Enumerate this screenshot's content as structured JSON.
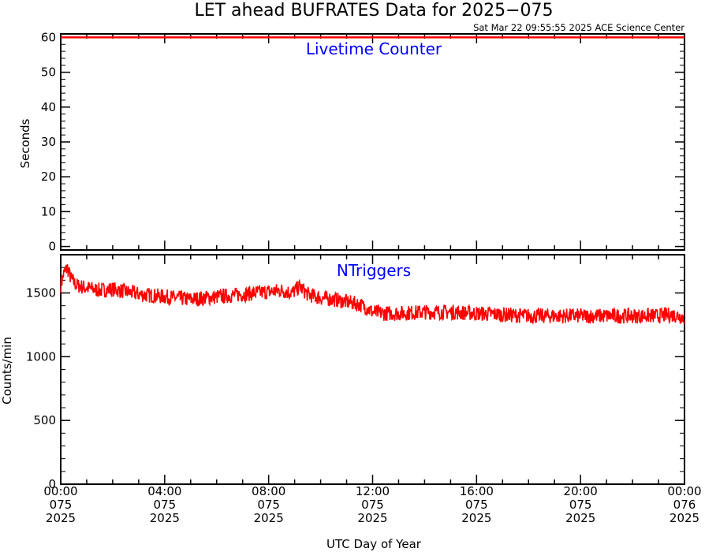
{
  "title": "LET ahead BUFRATES Data for 2025−075",
  "timestamp": "Sat Mar 22 09:55:55 2025 ACE Science Center",
  "colors": {
    "series": "#ff0000",
    "panel_title": "#0000ff",
    "axes": "#000000",
    "background": "#ffffff"
  },
  "chart_data": [
    {
      "type": "line",
      "panel_title": "Livetime Counter",
      "ylabel": "Seconds",
      "ylim": [
        -1,
        61
      ],
      "yticks": [
        0,
        10,
        20,
        30,
        40,
        50,
        60
      ],
      "xlim": [
        0,
        24
      ],
      "grid": false,
      "series": [
        {
          "x": [
            0,
            24
          ],
          "values": [
            60,
            60
          ]
        }
      ]
    },
    {
      "type": "line",
      "panel_title": "NTriggers",
      "ylabel": "Counts/min",
      "xlabel": "UTC Day of Year",
      "ylim": [
        0,
        1800
      ],
      "yticks": [
        0,
        500,
        1000,
        1500
      ],
      "xlim": [
        0,
        24
      ],
      "grid": false,
      "x_tick_labels": [
        [
          "00:00",
          "075",
          "2025"
        ],
        [
          "04:00",
          "075",
          "2025"
        ],
        [
          "08:00",
          "075",
          "2025"
        ],
        [
          "12:00",
          "075",
          "2025"
        ],
        [
          "16:00",
          "075",
          "2025"
        ],
        [
          "20:00",
          "075",
          "2025"
        ],
        [
          "00:00",
          "076",
          "2025"
        ]
      ],
      "series": [
        {
          "x": [
            0,
            0.1,
            0.25,
            0.4,
            0.6,
            1,
            1.5,
            2,
            2.5,
            3,
            3.5,
            4,
            4.5,
            5,
            5.5,
            6,
            6.5,
            7,
            7.5,
            8,
            8.5,
            8.9,
            9.2,
            9.5,
            10,
            10.5,
            11,
            11.5,
            11.8,
            12,
            12.5,
            13,
            14,
            15,
            16,
            17,
            18,
            19,
            20,
            21,
            22,
            23,
            23.5,
            24
          ],
          "values": [
            1560,
            1640,
            1700,
            1610,
            1560,
            1540,
            1520,
            1530,
            1510,
            1490,
            1480,
            1470,
            1460,
            1450,
            1460,
            1470,
            1480,
            1490,
            1500,
            1510,
            1520,
            1500,
            1550,
            1490,
            1460,
            1450,
            1430,
            1410,
            1380,
            1350,
            1340,
            1340,
            1350,
            1350,
            1340,
            1330,
            1320,
            1320,
            1320,
            1320,
            1320,
            1320,
            1330,
            1310
          ]
        }
      ]
    }
  ]
}
